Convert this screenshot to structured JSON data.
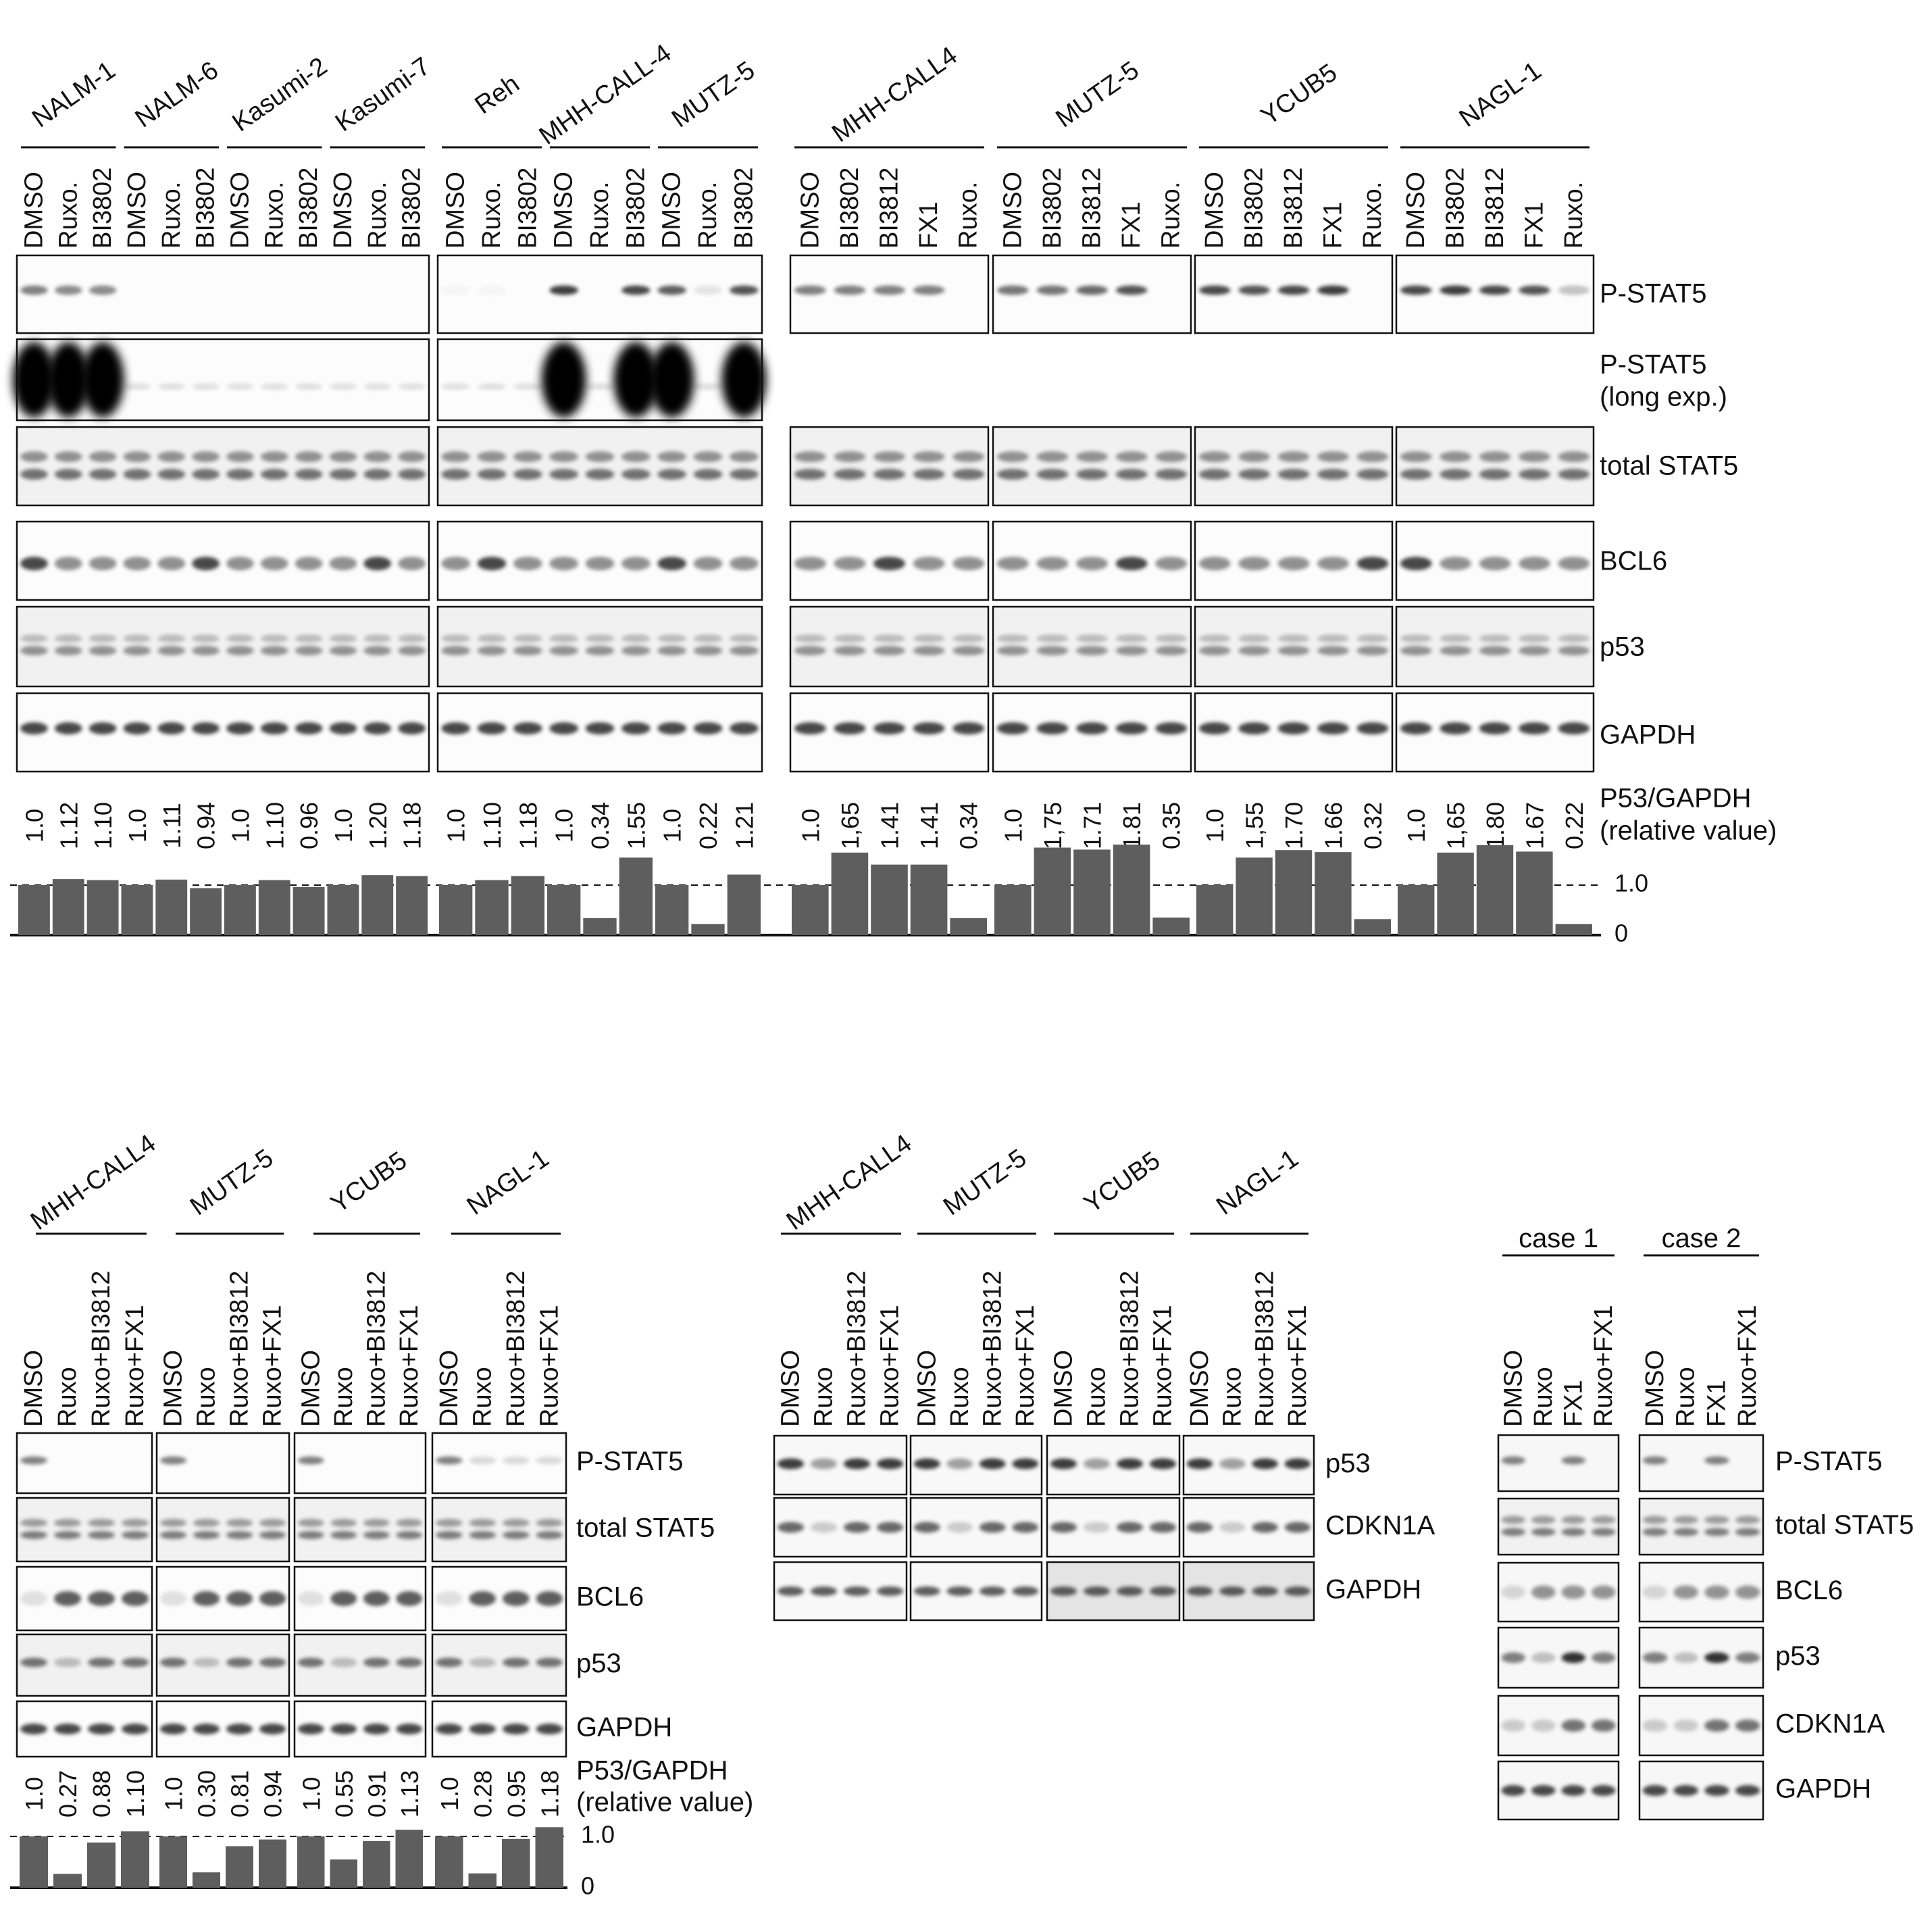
{
  "panel_a": {
    "groups": [
      {
        "lanes": [
          "DMSO",
          "Ruxo.",
          "BI3802",
          "DMSO",
          "Ruxo.",
          "BI3802",
          "DMSO",
          "Ruxo.",
          "BI3802",
          "DMSO",
          "Ruxo.",
          "BI3802"
        ],
        "cells": [
          {
            "name": "NALM-1",
            "span": [
              0,
              2
            ]
          },
          {
            "name": "NALM-6",
            "span": [
              3,
              5
            ]
          },
          {
            "name": "Kasumi-2",
            "span": [
              6,
              8
            ]
          },
          {
            "name": "Kasumi-7",
            "span": [
              9,
              11
            ]
          }
        ],
        "ratios": [
          "1.0",
          "1.12",
          "1.10",
          "1.0",
          "1.11",
          "0.94",
          "1.0",
          "1.10",
          "0.96",
          "1.0",
          "1.20",
          "1.18"
        ],
        "has_long": true,
        "p_stat5_signal": [
          0.55,
          0.5,
          0.5,
          0,
          0,
          0,
          0,
          0,
          0,
          0,
          0,
          0
        ]
      },
      {
        "lanes": [
          "DMSO",
          "Ruxo.",
          "BI3802",
          "DMSO",
          "Ruxo.",
          "BI3802",
          "DMSO",
          "Ruxo.",
          "BI3802"
        ],
        "cells": [
          {
            "name": "Reh",
            "span": [
              0,
              2
            ]
          },
          {
            "name": "MHH-CALL-4",
            "span": [
              3,
              5
            ]
          },
          {
            "name": "MUTZ-5",
            "span": [
              6,
              8
            ]
          }
        ],
        "ratios": [
          "1.0",
          "1.10",
          "1.18",
          "1.0",
          "0.34",
          "1.55",
          "1.0",
          "0.22",
          "1.21"
        ],
        "has_long": true,
        "p_stat5_signal": [
          0.03,
          0.03,
          0,
          0.85,
          0,
          0.8,
          0.7,
          0.1,
          0.75
        ]
      },
      {
        "lanes": [
          "DMSO",
          "BI3802",
          "BI3812",
          "FX1",
          "Ruxo."
        ],
        "cells": [
          {
            "name": "MHH-CALL4",
            "span": [
              0,
              4
            ]
          }
        ],
        "ratios": [
          "1.0",
          "1,65",
          "1.41",
          "1.41",
          "0.34"
        ],
        "has_long": false,
        "p_stat5_signal": [
          0.55,
          0.55,
          0.55,
          0.55,
          0
        ]
      },
      {
        "lanes": [
          "DMSO",
          "BI3802",
          "BI3812",
          "FX1",
          "Ruxo."
        ],
        "cells": [
          {
            "name": "MUTZ-5",
            "span": [
              0,
              4
            ]
          }
        ],
        "ratios": [
          "1.0",
          "1,75",
          "1.71",
          "1.81",
          "0.35"
        ],
        "has_long": false,
        "p_stat5_signal": [
          0.6,
          0.6,
          0.65,
          0.75,
          0
        ]
      },
      {
        "lanes": [
          "DMSO",
          "BI3802",
          "BI3812",
          "FX1",
          "Ruxo."
        ],
        "cells": [
          {
            "name": "YCUB5",
            "span": [
              0,
              4
            ]
          }
        ],
        "ratios": [
          "1.0",
          "1,55",
          "1.70",
          "1.66",
          "0.32"
        ],
        "has_long": false,
        "p_stat5_signal": [
          0.8,
          0.75,
          0.8,
          0.85,
          0
        ]
      },
      {
        "lanes": [
          "DMSO",
          "BI3802",
          "BI3812",
          "FX1",
          "Ruxo."
        ],
        "cells": [
          {
            "name": "NAGL-1",
            "span": [
              0,
              4
            ]
          }
        ],
        "ratios": [
          "1.0",
          "1,65",
          "1.80",
          "1.67",
          "0.22"
        ],
        "has_long": false,
        "p_stat5_signal": [
          0.8,
          0.85,
          0.8,
          0.75,
          0.25
        ]
      }
    ],
    "row_labels": [
      "P-STAT5",
      "P-STAT5",
      "(long exp.)",
      "total STAT5",
      "BCL6",
      "p53",
      "GAPDH"
    ],
    "ratio_title": "P53/GAPDH",
    "ratio_subtitle": "(relative value)",
    "axis_ticks": [
      "1.0",
      "0"
    ]
  },
  "panel_b": {
    "groups": [
      {
        "lanes": [
          "DMSO",
          "Ruxo",
          "Ruxo+BI3812",
          "Ruxo+FX1"
        ],
        "cell": "MHH-CALL4",
        "ratios": [
          "1.0",
          "0.27",
          "0.88",
          "1.10"
        ]
      },
      {
        "lanes": [
          "DMSO",
          "Ruxo",
          "Ruxo+BI3812",
          "Ruxo+FX1"
        ],
        "cell": "MUTZ-5",
        "ratios": [
          "1.0",
          "0.30",
          "0.81",
          "0.94"
        ]
      },
      {
        "lanes": [
          "DMSO",
          "Ruxo",
          "Ruxo+BI3812",
          "Ruxo+FX1"
        ],
        "cell": "YCUB5",
        "ratios": [
          "1.0",
          "0.55",
          "0.91",
          "1.13"
        ]
      },
      {
        "lanes": [
          "DMSO",
          "Ruxo",
          "Ruxo+BI3812",
          "Ruxo+FX1"
        ],
        "cell": "NAGL-1",
        "ratios": [
          "1.0",
          "0.28",
          "0.95",
          "1.18"
        ]
      }
    ],
    "row_labels": [
      "P-STAT5",
      "total STAT5",
      "BCL6",
      "p53",
      "GAPDH"
    ],
    "ratio_title": "P53/GAPDH",
    "ratio_subtitle": "(relative value)",
    "axis_ticks": [
      "1.0",
      "0"
    ]
  },
  "panel_c": {
    "groups": [
      {
        "lanes": [
          "DMSO",
          "Ruxo",
          "Ruxo+BI3812",
          "Ruxo+FX1"
        ],
        "cell": "MHH-CALL4"
      },
      {
        "lanes": [
          "DMSO",
          "Ruxo",
          "Ruxo+BI3812",
          "Ruxo+FX1"
        ],
        "cell": "MUTZ-5"
      },
      {
        "lanes": [
          "DMSO",
          "Ruxo",
          "Ruxo+BI3812",
          "Ruxo+FX1"
        ],
        "cell": "YCUB5"
      },
      {
        "lanes": [
          "DMSO",
          "Ruxo",
          "Ruxo+BI3812",
          "Ruxo+FX1"
        ],
        "cell": "NAGL-1"
      }
    ],
    "row_labels": [
      "p53",
      "CDKN1A",
      "GAPDH"
    ]
  },
  "panel_d": {
    "groups": [
      {
        "lanes": [
          "DMSO",
          "Ruxo",
          "FX1",
          "Ruxo+FX1"
        ],
        "cell": "case 1"
      },
      {
        "lanes": [
          "DMSO",
          "Ruxo",
          "FX1",
          "Ruxo+FX1"
        ],
        "cell": "case 2"
      }
    ],
    "row_labels": [
      "P-STAT5",
      "total STAT5",
      "BCL6",
      "p53",
      "CDKN1A",
      "GAPDH"
    ]
  },
  "chart_data": [
    {
      "type": "bar",
      "ylim": [
        0,
        1.8
      ],
      "reference_line": 1.0,
      "categories": [
        "NALM-1 DMSO",
        "NALM-1 Ruxo.",
        "NALM-1 BI3802",
        "NALM-6 DMSO",
        "NALM-6 Ruxo.",
        "NALM-6 BI3802",
        "Kasumi-2 DMSO",
        "Kasumi-2 Ruxo.",
        "Kasumi-2 BI3802",
        "Kasumi-7 DMSO",
        "Kasumi-7 Ruxo.",
        "Kasumi-7 BI3802",
        "Reh DMSO",
        "Reh Ruxo.",
        "Reh BI3802",
        "MHH-CALL-4 DMSO",
        "MHH-CALL-4 Ruxo.",
        "MHH-CALL-4 BI3802",
        "MUTZ-5 DMSO",
        "MUTZ-5 Ruxo.",
        "MUTZ-5 BI3802",
        "MHH-CALL4 DMSO",
        "MHH-CALL4 BI3802",
        "MHH-CALL4 BI3812",
        "MHH-CALL4 FX1",
        "MHH-CALL4 Ruxo.",
        "MUTZ-5 DMSO",
        "MUTZ-5 BI3802",
        "MUTZ-5 BI3812",
        "MUTZ-5 FX1",
        "MUTZ-5 Ruxo.",
        "YCUB5 DMSO",
        "YCUB5 BI3802",
        "YCUB5 BI3812",
        "YCUB5 FX1",
        "YCUB5 Ruxo.",
        "NAGL-1 DMSO",
        "NAGL-1 BI3802",
        "NAGL-1 BI3812",
        "NAGL-1 FX1",
        "NAGL-1 Ruxo."
      ],
      "values": [
        1.0,
        1.12,
        1.1,
        1.0,
        1.11,
        0.94,
        1.0,
        1.1,
        0.96,
        1.0,
        1.2,
        1.18,
        1.0,
        1.1,
        1.18,
        1.0,
        0.34,
        1.55,
        1.0,
        0.22,
        1.21,
        1.0,
        1.65,
        1.41,
        1.41,
        0.34,
        1.0,
        1.75,
        1.71,
        1.81,
        0.35,
        1.0,
        1.55,
        1.7,
        1.66,
        0.32,
        1.0,
        1.65,
        1.8,
        1.67,
        0.22
      ]
    },
    {
      "type": "bar",
      "ylim": [
        0,
        1.2
      ],
      "reference_line": 1.0,
      "categories": [
        "MHH-CALL4 DMSO",
        "MHH-CALL4 Ruxo",
        "MHH-CALL4 Ruxo+BI3812",
        "MHH-CALL4 Ruxo+FX1",
        "MUTZ-5 DMSO",
        "MUTZ-5 Ruxo",
        "MUTZ-5 Ruxo+BI3812",
        "MUTZ-5 Ruxo+FX1",
        "YCUB5 DMSO",
        "YCUB5 Ruxo",
        "YCUB5 Ruxo+BI3812",
        "YCUB5 Ruxo+FX1",
        "NAGL-1 DMSO",
        "NAGL-1 Ruxo",
        "NAGL-1 Ruxo+BI3812",
        "NAGL-1 Ruxo+FX1"
      ],
      "values": [
        1.0,
        0.27,
        0.88,
        1.1,
        1.0,
        0.3,
        0.81,
        0.94,
        1.0,
        0.55,
        0.91,
        1.13,
        1.0,
        0.28,
        0.95,
        1.18
      ]
    }
  ]
}
